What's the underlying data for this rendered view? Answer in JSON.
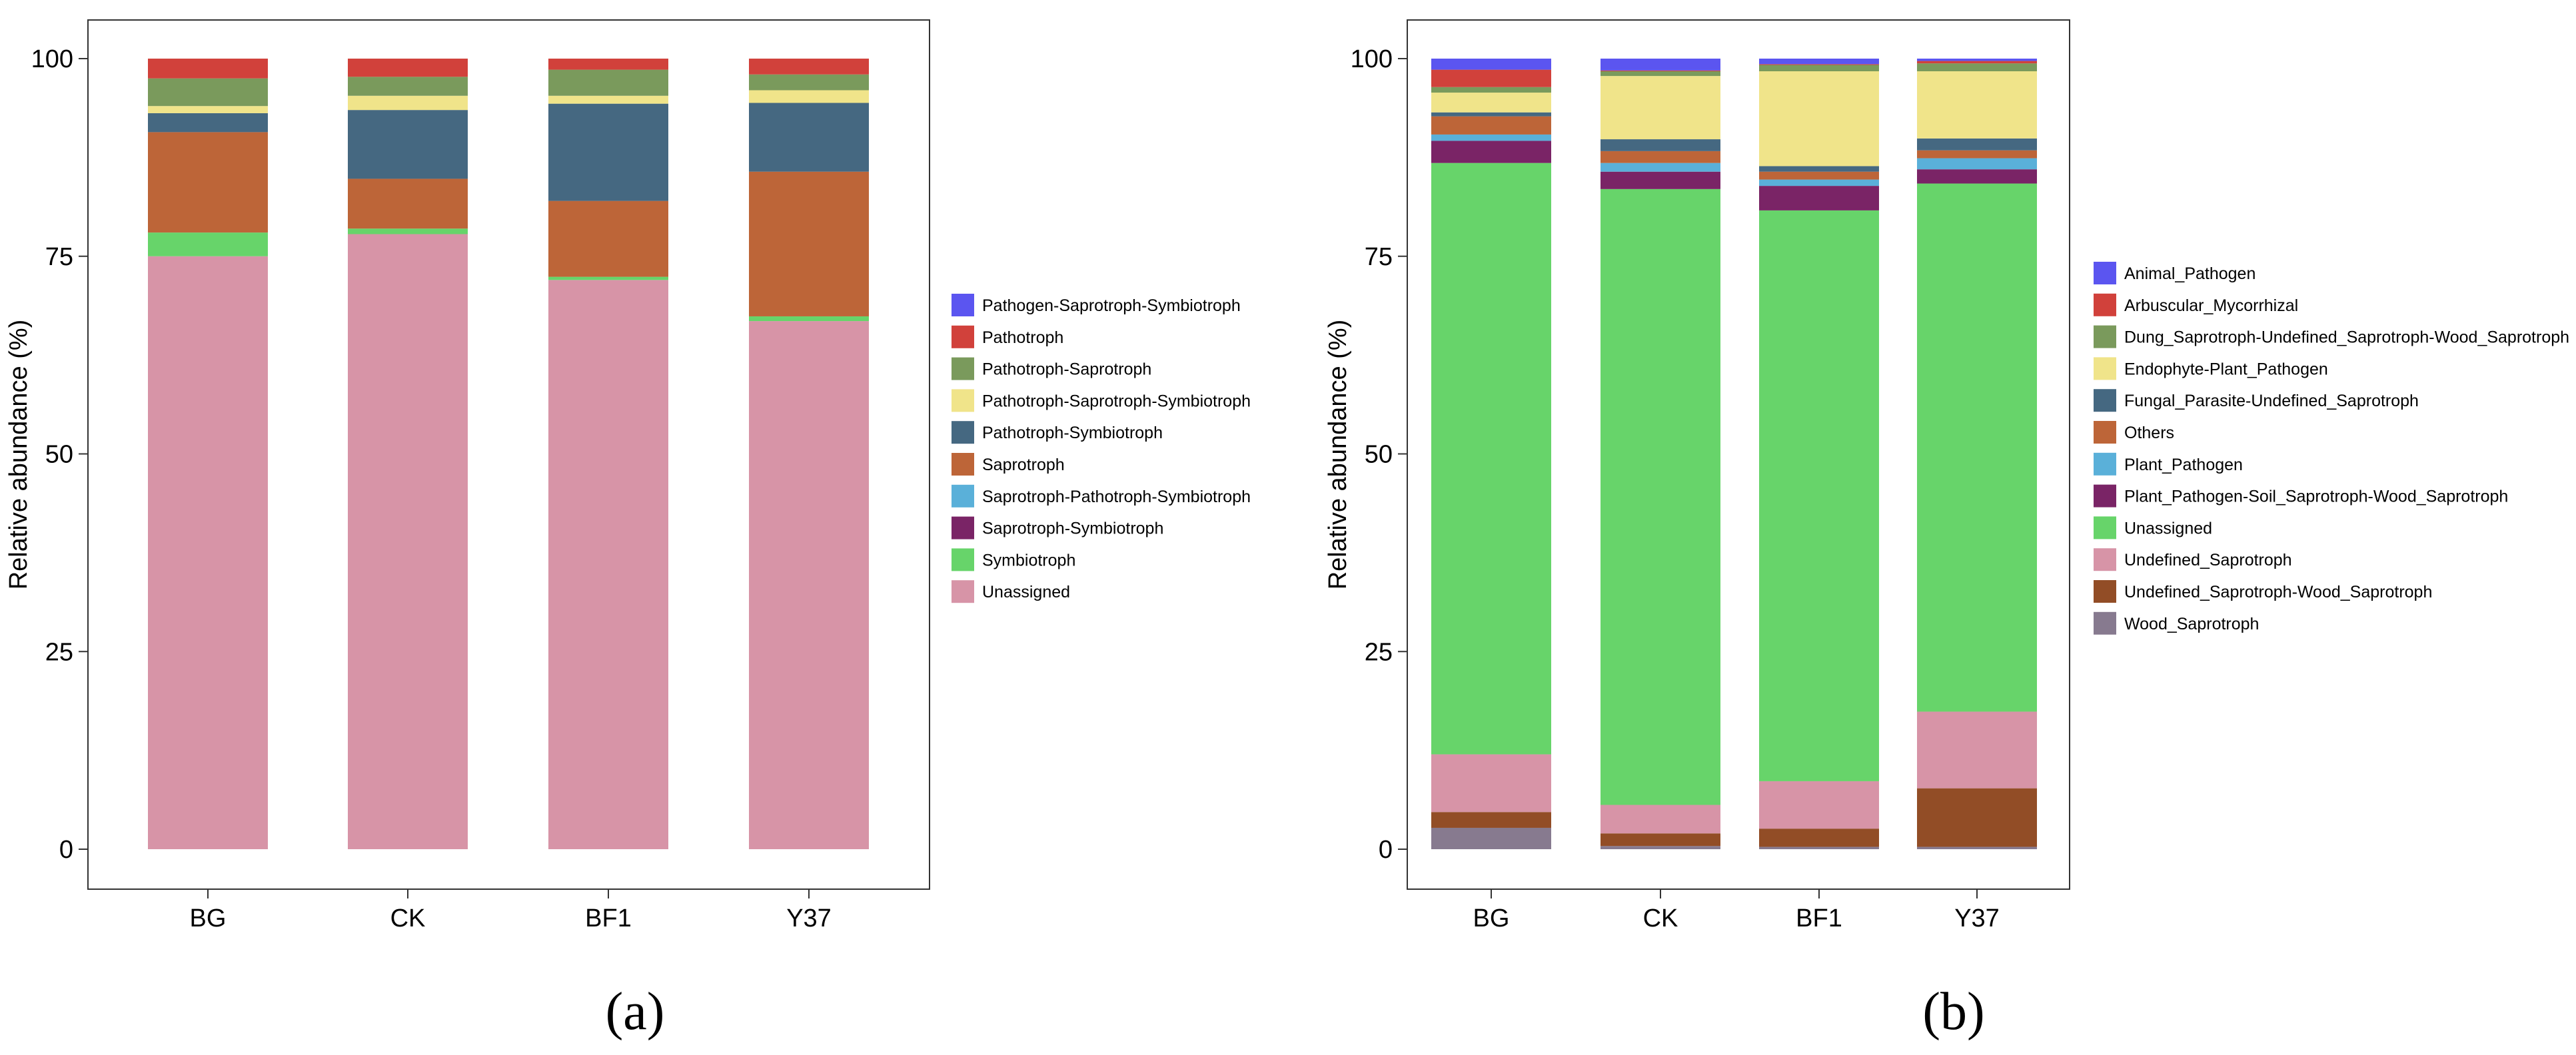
{
  "colors": {
    "Pathogen-Saprotroph-Symbiotroph": "#5b55f0",
    "Pathotroph": "#d1413b",
    "Pathotroph-Saprotroph": "#7a9a5c",
    "Pathotroph-Saprotroph-Symbiotroph": "#f0e48a",
    "Pathotroph-Symbiotroph": "#456881",
    "Saprotroph": "#bd6538",
    "Saprotroph-Pathotroph-Symbiotroph": "#5ab0d9",
    "Saprotroph-Symbiotroph": "#7a2466",
    "Symbiotroph": "#67d46a",
    "Unassigned_a": "#d794a7",
    "Animal_Pathogen": "#5b55f0",
    "Arbuscular_Mycorrhizal": "#d1413b",
    "Dung_Saprotroph-Undefined_Saprotroph-Wood_Saprotroph": "#7a9a5c",
    "Endophyte-Plant_Pathogen": "#f0e48a",
    "Fungal_Parasite-Undefined_Saprotroph": "#456881",
    "Others": "#bd6538",
    "Plant_Pathogen": "#5ab0d9",
    "Plant_Pathogen-Soil_Saprotroph-Wood_Saprotroph": "#7a2466",
    "Unassigned_b": "#67d46a",
    "Undefined_Saprotroph": "#d794a7",
    "Undefined_Saprotroph-Wood_Saprotroph": "#924d26",
    "Wood_Saprotroph": "#877a8f"
  },
  "chart_data": [
    {
      "type": "bar",
      "stacked": true,
      "panel_label": "(a)",
      "title": "",
      "xlabel": "",
      "ylabel": "Relative abundance (%)",
      "ylim": [
        0,
        100
      ],
      "yticks": [
        "0",
        "25",
        "50",
        "75",
        "100"
      ],
      "categories": [
        "BG",
        "CK",
        "BF1",
        "Y37"
      ],
      "legend_position": "right",
      "series": [
        {
          "name": "Unassigned",
          "color_key": "Unassigned_a",
          "values": [
            75.0,
            77.8,
            72.0,
            66.8
          ]
        },
        {
          "name": "Symbiotroph",
          "color_key": "Symbiotroph",
          "values": [
            3.0,
            0.7,
            0.4,
            0.6
          ]
        },
        {
          "name": "Saprotroph-Symbiotroph",
          "color_key": "Saprotroph-Symbiotroph",
          "values": [
            0,
            0,
            0,
            0
          ]
        },
        {
          "name": "Saprotroph-Pathotroph-Symbiotroph",
          "color_key": "Saprotroph-Pathotroph-Symbiotroph",
          "values": [
            0,
            0,
            0,
            0
          ]
        },
        {
          "name": "Saprotroph",
          "color_key": "Saprotroph",
          "values": [
            12.7,
            6.3,
            9.6,
            18.3
          ]
        },
        {
          "name": "Pathotroph-Symbiotroph",
          "color_key": "Pathotroph-Symbiotroph",
          "values": [
            2.4,
            8.7,
            12.3,
            8.7
          ]
        },
        {
          "name": "Pathotroph-Saprotroph-Symbiotroph",
          "color_key": "Pathotroph-Saprotroph-Symbiotroph",
          "values": [
            0.9,
            1.8,
            1.0,
            1.6
          ]
        },
        {
          "name": "Pathotroph-Saprotroph",
          "color_key": "Pathotroph-Saprotroph",
          "values": [
            3.5,
            2.4,
            3.3,
            2.0
          ]
        },
        {
          "name": "Pathotroph",
          "color_key": "Pathotroph",
          "values": [
            2.5,
            2.3,
            1.4,
            2.0
          ]
        },
        {
          "name": "Pathogen-Saprotroph-Symbiotroph",
          "color_key": "Pathogen-Saprotroph-Symbiotroph",
          "values": [
            0,
            0,
            0,
            0
          ]
        }
      ],
      "legend": [
        {
          "label": "Pathogen-Saprotroph-Symbiotroph",
          "color_key": "Pathogen-Saprotroph-Symbiotroph"
        },
        {
          "label": "Pathotroph",
          "color_key": "Pathotroph"
        },
        {
          "label": "Pathotroph-Saprotroph",
          "color_key": "Pathotroph-Saprotroph"
        },
        {
          "label": "Pathotroph-Saprotroph-Symbiotroph",
          "color_key": "Pathotroph-Saprotroph-Symbiotroph"
        },
        {
          "label": "Pathotroph-Symbiotroph",
          "color_key": "Pathotroph-Symbiotroph"
        },
        {
          "label": "Saprotroph",
          "color_key": "Saprotroph"
        },
        {
          "label": "Saprotroph-Pathotroph-Symbiotroph",
          "color_key": "Saprotroph-Pathotroph-Symbiotroph"
        },
        {
          "label": "Saprotroph-Symbiotroph",
          "color_key": "Saprotroph-Symbiotroph"
        },
        {
          "label": "Symbiotroph",
          "color_key": "Symbiotroph"
        },
        {
          "label": "Unassigned",
          "color_key": "Unassigned_a"
        }
      ]
    },
    {
      "type": "bar",
      "stacked": true,
      "panel_label": "(b)",
      "title": "",
      "xlabel": "",
      "ylabel": "Relative abundance (%)",
      "ylim": [
        0,
        100
      ],
      "yticks": [
        "0",
        "25",
        "50",
        "75",
        "100"
      ],
      "categories": [
        "BG",
        "CK",
        "BF1",
        "Y37"
      ],
      "legend_position": "right",
      "series": [
        {
          "name": "Wood_Saprotroph",
          "color_key": "Wood_Saprotroph",
          "values": [
            2.7,
            0.4,
            0.3,
            0.3
          ]
        },
        {
          "name": "Undefined_Saprotroph-Wood_Saprotroph",
          "color_key": "Undefined_Saprotroph-Wood_Saprotroph",
          "values": [
            2.0,
            1.6,
            2.3,
            7.4
          ]
        },
        {
          "name": "Undefined_Saprotroph",
          "color_key": "Undefined_Saprotroph",
          "values": [
            7.3,
            3.6,
            6.0,
            9.7
          ]
        },
        {
          "name": "Unassigned",
          "color_key": "Unassigned_b",
          "values": [
            74.8,
            77.9,
            72.2,
            66.8
          ]
        },
        {
          "name": "Plant_Pathogen-Soil_Saprotroph-Wood_Saprotroph",
          "color_key": "Plant_Pathogen-Soil_Saprotroph-Wood_Saprotroph",
          "values": [
            2.8,
            2.2,
            3.1,
            1.8
          ]
        },
        {
          "name": "Plant_Pathogen",
          "color_key": "Plant_Pathogen",
          "values": [
            0.8,
            1.1,
            0.8,
            1.4
          ]
        },
        {
          "name": "Others",
          "color_key": "Others",
          "values": [
            2.3,
            1.5,
            1.0,
            1.0
          ]
        },
        {
          "name": "Fungal_Parasite-Undefined_Saprotroph",
          "color_key": "Fungal_Parasite-Undefined_Saprotroph",
          "values": [
            0.5,
            1.5,
            0.7,
            1.5
          ]
        },
        {
          "name": "Endophyte-Plant_Pathogen",
          "color_key": "Endophyte-Plant_Pathogen",
          "values": [
            2.5,
            8.0,
            12.0,
            8.5
          ]
        },
        {
          "name": "Dung_Saprotroph-Undefined_Saprotroph-Wood_Saprotroph",
          "color_key": "Dung_Saprotroph-Undefined_Saprotroph-Wood_Saprotroph",
          "values": [
            0.7,
            0.6,
            0.8,
            1.0
          ]
        },
        {
          "name": "Arbuscular_Mycorrhizal",
          "color_key": "Arbuscular_Mycorrhizal",
          "values": [
            2.2,
            0.1,
            0.1,
            0.3
          ]
        },
        {
          "name": "Animal_Pathogen",
          "color_key": "Animal_Pathogen",
          "values": [
            1.4,
            1.5,
            0.7,
            0.3
          ]
        }
      ],
      "legend": [
        {
          "label": "Animal_Pathogen",
          "color_key": "Animal_Pathogen"
        },
        {
          "label": "Arbuscular_Mycorrhizal",
          "color_key": "Arbuscular_Mycorrhizal"
        },
        {
          "label": "Dung_Saprotroph-Undefined_Saprotroph-Wood_Saprotroph",
          "color_key": "Dung_Saprotroph-Undefined_Saprotroph-Wood_Saprotroph"
        },
        {
          "label": "Endophyte-Plant_Pathogen",
          "color_key": "Endophyte-Plant_Pathogen"
        },
        {
          "label": "Fungal_Parasite-Undefined_Saprotroph",
          "color_key": "Fungal_Parasite-Undefined_Saprotroph"
        },
        {
          "label": "Others",
          "color_key": "Others"
        },
        {
          "label": "Plant_Pathogen",
          "color_key": "Plant_Pathogen"
        },
        {
          "label": "Plant_Pathogen-Soil_Saprotroph-Wood_Saprotroph",
          "color_key": "Plant_Pathogen-Soil_Saprotroph-Wood_Saprotroph"
        },
        {
          "label": "Unassigned",
          "color_key": "Unassigned_b"
        },
        {
          "label": "Undefined_Saprotroph",
          "color_key": "Undefined_Saprotroph"
        },
        {
          "label": "Undefined_Saprotroph-Wood_Saprotroph",
          "color_key": "Undefined_Saprotroph-Wood_Saprotroph"
        },
        {
          "label": "Wood_Saprotroph",
          "color_key": "Wood_Saprotroph"
        }
      ]
    }
  ]
}
